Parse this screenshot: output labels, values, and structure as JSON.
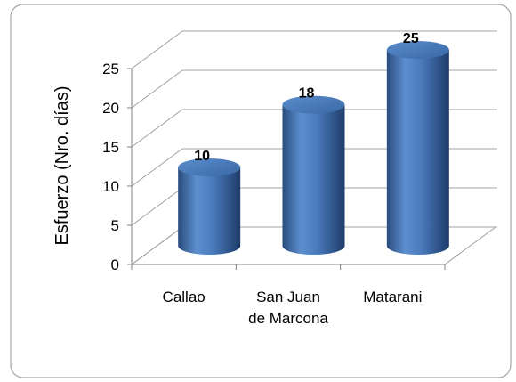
{
  "chart_data": {
    "type": "bar",
    "y_label": "Esfuerzo (Nro. días)",
    "categories": [
      "Callao",
      "San Juan de Marcona",
      "Matarani"
    ],
    "values": [
      10,
      18,
      25
    ],
    "color": "#4f81bd",
    "ylim": [
      0,
      25
    ],
    "yticks": [
      0,
      5,
      10,
      15,
      20,
      25
    ],
    "grid": true
  }
}
